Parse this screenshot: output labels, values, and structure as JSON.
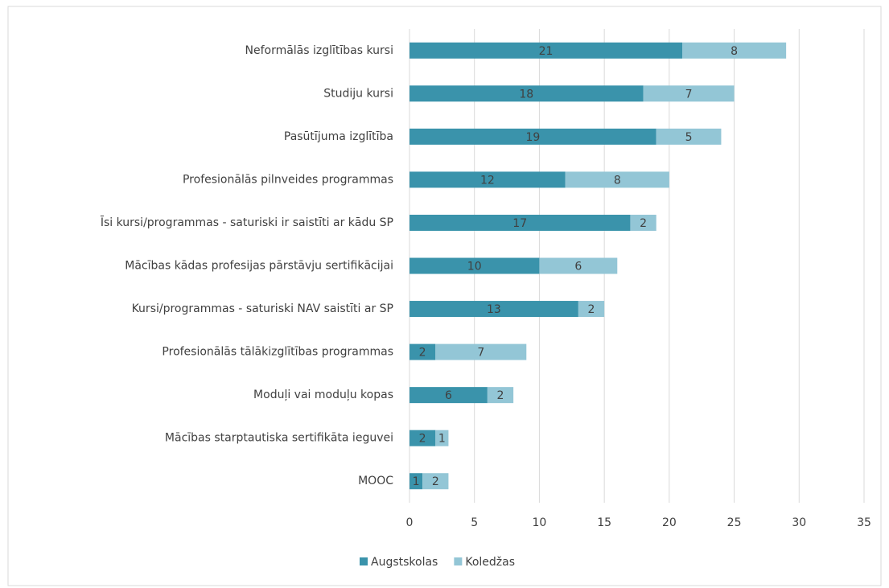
{
  "chart_data": {
    "type": "stacked_barh",
    "categories": [
      "Neformālās izglītības kursi",
      "Studiju kursi",
      "Pasūtījuma izglītība",
      "Profesionālās pilnveides programmas",
      "Īsi kursi/programmas - saturiski ir saistīti ar kādu SP",
      "Mācības kādas profesijas pārstāvju sertifikācijai",
      "Kursi/programmas - saturiski NAV saistīti ar SP",
      "Profesionālās tālākizglītības programmas",
      "Moduļi vai moduļu kopas",
      "Mācības starptautiska sertifikāta ieguvei",
      "MOOC"
    ],
    "series": [
      {
        "name": "Augstskolas",
        "color": "#3a93ab",
        "values": [
          21,
          18,
          19,
          12,
          17,
          10,
          13,
          2,
          6,
          2,
          1
        ]
      },
      {
        "name": "Koledžas",
        "color": "#93c6d6",
        "values": [
          8,
          7,
          5,
          8,
          2,
          6,
          2,
          7,
          2,
          1,
          2
        ]
      }
    ],
    "xlim": [
      0,
      35
    ],
    "xticks": [
      0,
      5,
      10,
      15,
      20,
      25,
      30,
      35
    ],
    "grid": true,
    "legend": "bottom"
  }
}
